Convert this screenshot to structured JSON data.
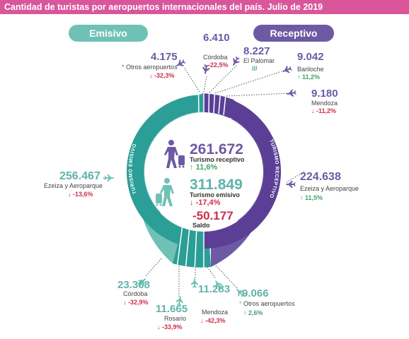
{
  "title": "Cantidad de turistas por aeropuertos internacionales del país. Julio de 2019",
  "pill_emisivo": "Emisivo",
  "pill_receptivo": "Receptivo",
  "ring_emisivo": "TURISMO EMISIVO",
  "ring_receptivo": "TURISMO RECEPTIVO",
  "center": {
    "receptivo_value": "261.672",
    "receptivo_label": "Turismo receptivo",
    "receptivo_change": "11,6%",
    "emisivo_value": "311.849",
    "emisivo_label": "Turismo emisivo",
    "emisivo_change": "-17,4%",
    "saldo_value": "-50.177",
    "saldo_label": "Saldo"
  },
  "receptivo": [
    {
      "value": "6.410",
      "name": "Córdoba",
      "change": "-22,5%"
    },
    {
      "value": "8.227",
      "name": "El Palomar",
      "change": "///"
    },
    {
      "value": "9.042",
      "name": "Bariloche",
      "change": "11,2%"
    },
    {
      "value": "9.180",
      "name": "Mendoza",
      "change": "-11,2%"
    },
    {
      "value": "224.638",
      "name": "Ezeiza y Aeroparque",
      "change": "11,5%"
    },
    {
      "value": "4.175",
      "name": "Otros aeropuertos",
      "change": "-32,3%"
    }
  ],
  "emisivo": [
    {
      "value": "256.467",
      "name": "Ezeiza y Aeroparque",
      "change": "-13,6%"
    },
    {
      "value": "23.368",
      "name": "Córdoba",
      "change": "-32,9%"
    },
    {
      "value": "11.665",
      "name": "Rosario",
      "change": "-33,9%"
    },
    {
      "value": "11.283",
      "name": "Mendoza",
      "change": "-42,3%"
    },
    {
      "value": "9.066",
      "name": "Otros aeropuertos",
      "change": "2,6%"
    }
  ],
  "colors": {
    "title_bar": "#d9569b",
    "emisivo": "#6fc1b6",
    "emisivo_dark": "#2a9e97",
    "receptivo": "#6d5aa3",
    "receptivo_dark": "#5b3f96",
    "up": "#3fa46a",
    "down": "#cc2f4a"
  },
  "icons": [
    "airplane-icon",
    "traveler-icon",
    "arrow-up-icon",
    "arrow-down-icon"
  ]
}
